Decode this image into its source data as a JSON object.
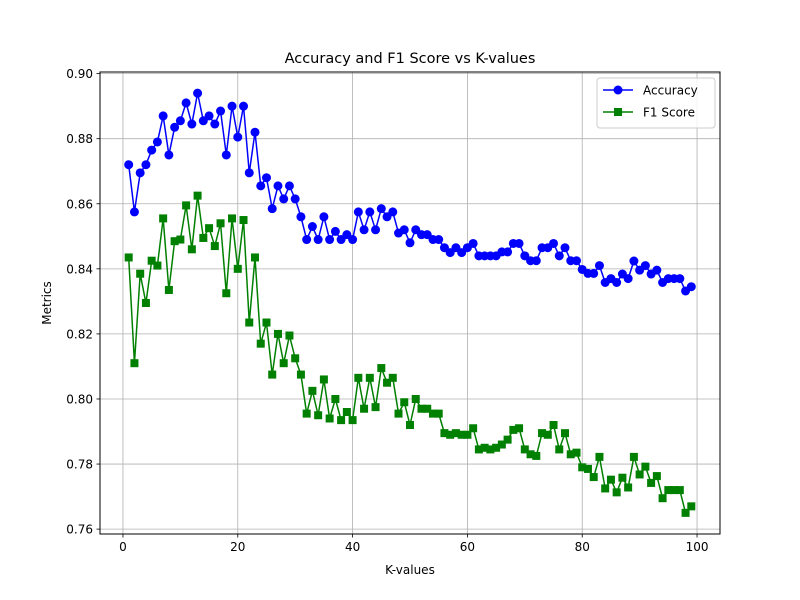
{
  "chart_data": {
    "type": "line",
    "title": "Accuracy and F1 Score vs K-values",
    "xlabel": "K-values",
    "ylabel": "Metrics",
    "xlim": [
      -4,
      104
    ],
    "ylim": [
      0.7585,
      0.9005
    ],
    "xticks": [
      0,
      20,
      40,
      60,
      80,
      100
    ],
    "yticks": [
      0.76,
      0.78,
      0.8,
      0.82,
      0.84,
      0.86,
      0.88,
      0.9
    ],
    "xtick_labels": [
      "0",
      "20",
      "40",
      "60",
      "80",
      "100"
    ],
    "ytick_labels": [
      "0.76",
      "0.78",
      "0.80",
      "0.82",
      "0.84",
      "0.86",
      "0.88",
      "0.90"
    ],
    "grid": true,
    "legend_position": "top-right",
    "x": [
      1,
      2,
      3,
      4,
      5,
      6,
      7,
      8,
      9,
      10,
      11,
      12,
      13,
      14,
      15,
      16,
      17,
      18,
      19,
      20,
      21,
      22,
      23,
      24,
      25,
      26,
      27,
      28,
      29,
      30,
      31,
      32,
      33,
      34,
      35,
      36,
      37,
      38,
      39,
      40,
      41,
      42,
      43,
      44,
      45,
      46,
      47,
      48,
      49,
      50,
      51,
      52,
      53,
      54,
      55,
      56,
      57,
      58,
      59,
      60,
      61,
      62,
      63,
      64,
      65,
      66,
      67,
      68,
      69,
      70,
      71,
      72,
      73,
      74,
      75,
      76,
      77,
      78,
      79,
      80,
      81,
      82,
      83,
      84,
      85,
      86,
      87,
      88,
      89,
      90,
      91,
      92,
      93,
      94,
      95,
      96,
      97,
      98,
      99
    ],
    "series": [
      {
        "name": "Accuracy",
        "color": "#0000ff",
        "marker": "circle",
        "values": [
          0.872,
          0.8575,
          0.8695,
          0.872,
          0.8765,
          0.879,
          0.887,
          0.875,
          0.8835,
          0.8855,
          0.891,
          0.8845,
          0.894,
          0.8855,
          0.887,
          0.8845,
          0.8885,
          0.875,
          0.89,
          0.8805,
          0.89,
          0.8695,
          0.882,
          0.8655,
          0.868,
          0.8585,
          0.8655,
          0.8615,
          0.8655,
          0.8615,
          0.856,
          0.849,
          0.853,
          0.849,
          0.856,
          0.849,
          0.8515,
          0.849,
          0.8505,
          0.849,
          0.8575,
          0.852,
          0.8575,
          0.852,
          0.8585,
          0.856,
          0.8575,
          0.851,
          0.852,
          0.848,
          0.852,
          0.8505,
          0.8505,
          0.849,
          0.849,
          0.8465,
          0.845,
          0.8465,
          0.845,
          0.8465,
          0.8478,
          0.844,
          0.844,
          0.844,
          0.844,
          0.8452,
          0.8452,
          0.8478,
          0.8478,
          0.844,
          0.8425,
          0.8425,
          0.8465,
          0.8465,
          0.8478,
          0.844,
          0.8465,
          0.8425,
          0.8425,
          0.8398,
          0.8386,
          0.8386,
          0.841,
          0.8358,
          0.837,
          0.8358,
          0.8384,
          0.837,
          0.8424,
          0.8396,
          0.841,
          0.8384,
          0.8396,
          0.8358,
          0.837,
          0.837,
          0.837,
          0.8332,
          0.8345
        ]
      },
      {
        "name": "F1 Score",
        "color": "#008000",
        "marker": "square",
        "values": [
          0.8435,
          0.811,
          0.8385,
          0.8295,
          0.8425,
          0.841,
          0.8555,
          0.8335,
          0.8485,
          0.849,
          0.8595,
          0.846,
          0.8625,
          0.8495,
          0.8525,
          0.847,
          0.854,
          0.8325,
          0.8555,
          0.84,
          0.855,
          0.8235,
          0.8435,
          0.817,
          0.8235,
          0.8075,
          0.82,
          0.811,
          0.8195,
          0.8125,
          0.8075,
          0.7955,
          0.8025,
          0.795,
          0.806,
          0.794,
          0.8,
          0.7935,
          0.796,
          0.7935,
          0.8065,
          0.797,
          0.8065,
          0.7975,
          0.8095,
          0.805,
          0.8065,
          0.7955,
          0.799,
          0.792,
          0.8,
          0.797,
          0.797,
          0.7955,
          0.7955,
          0.7895,
          0.789,
          0.7895,
          0.789,
          0.789,
          0.791,
          0.7845,
          0.785,
          0.7845,
          0.785,
          0.786,
          0.7875,
          0.7905,
          0.791,
          0.7845,
          0.783,
          0.7825,
          0.7895,
          0.789,
          0.792,
          0.7845,
          0.7895,
          0.783,
          0.7835,
          0.779,
          0.7785,
          0.776,
          0.7822,
          0.7725,
          0.7752,
          0.7713,
          0.7758,
          0.7728,
          0.7822,
          0.7768,
          0.7792,
          0.7742,
          0.7763,
          0.7695,
          0.772,
          0.772,
          0.772,
          0.765,
          0.767
        ]
      }
    ]
  }
}
